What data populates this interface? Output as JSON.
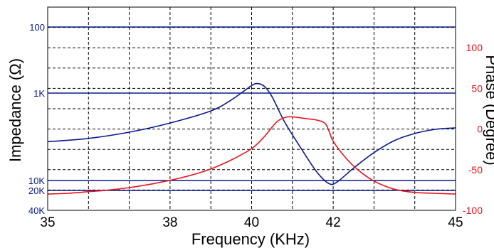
{
  "chart_data": {
    "type": "line",
    "xlabel": "Frequency (KHz)",
    "ylabel_left": "Impedance (Ω)",
    "ylabel_right": "Phase (Degree)",
    "xlim": [
      35,
      45
    ],
    "x_ticks": [
      35,
      38,
      40,
      42,
      45
    ],
    "x_grid": [
      35,
      36,
      37,
      38,
      39,
      40,
      41,
      42,
      43,
      44,
      45
    ],
    "left_axis": {
      "unit": "Ω",
      "ticks": [
        {
          "label": "100",
          "value": 100
        },
        {
          "label": "1K",
          "value": 1000
        },
        {
          "label": "10K",
          "value": 10000
        },
        {
          "label": "20K",
          "value": 20000
        },
        {
          "label": "40K",
          "value": 40000
        }
      ]
    },
    "right_axis": {
      "ylim": [
        -100,
        150
      ],
      "ticks": [
        100,
        50,
        0,
        -50,
        -100
      ],
      "grid": [
        150,
        125,
        100,
        75,
        50,
        25,
        0,
        -25,
        -50,
        -75,
        -100
      ]
    },
    "grid": true,
    "series": [
      {
        "label": "Impedance",
        "axis": "left",
        "color": "#0a1a8c",
        "points": [
          [
            35,
            3600
          ],
          [
            36,
            3300
          ],
          [
            37,
            2800
          ],
          [
            38,
            2200
          ],
          [
            39,
            1600
          ],
          [
            39.5,
            1200
          ],
          [
            39.9,
            850
          ],
          [
            40.1,
            720
          ],
          [
            40.3,
            780
          ],
          [
            40.5,
            1100
          ],
          [
            40.8,
            2100
          ],
          [
            41.2,
            4200
          ],
          [
            41.6,
            8000
          ],
          [
            41.9,
            12500
          ],
          [
            42.1,
            11000
          ],
          [
            42.5,
            7200
          ],
          [
            43,
            4800
          ],
          [
            43.5,
            3500
          ],
          [
            44,
            2900
          ],
          [
            44.5,
            2600
          ],
          [
            45,
            2500
          ]
        ]
      },
      {
        "label": "Phase",
        "axis": "right",
        "color": "#e8141c",
        "points": [
          [
            35,
            -80
          ],
          [
            35.5,
            -79
          ],
          [
            36,
            -77
          ],
          [
            36.5,
            -75
          ],
          [
            37,
            -72
          ],
          [
            37.5,
            -68
          ],
          [
            38,
            -63
          ],
          [
            38.5,
            -57
          ],
          [
            39,
            -49
          ],
          [
            39.5,
            -38
          ],
          [
            40,
            -24
          ],
          [
            40.3,
            -10
          ],
          [
            40.6,
            8
          ],
          [
            40.8,
            14
          ],
          [
            41,
            15
          ],
          [
            41.3,
            13
          ],
          [
            41.6,
            11
          ],
          [
            41.8,
            7
          ],
          [
            41.9,
            -3
          ],
          [
            42,
            -15
          ],
          [
            42.3,
            -35
          ],
          [
            42.6,
            -50
          ],
          [
            43,
            -64
          ],
          [
            43.5,
            -74
          ],
          [
            44,
            -78
          ],
          [
            44.5,
            -79
          ],
          [
            45,
            -80
          ]
        ]
      }
    ]
  }
}
